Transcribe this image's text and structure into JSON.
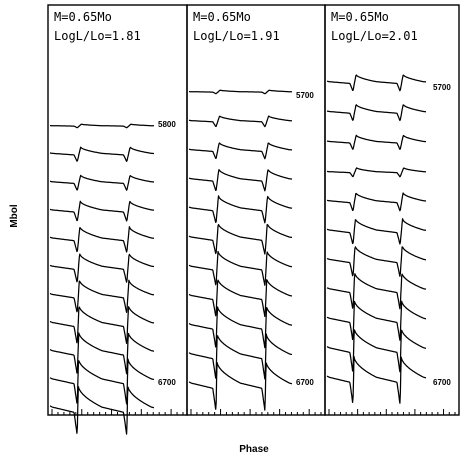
{
  "chart_data": {
    "type": "line",
    "xlabel": "Phase",
    "ylabel": "Mbol",
    "panels": [
      {
        "title_lines": [
          "M=0.65Mo",
          "LogL/Lo=1.81"
        ],
        "labels": [
          {
            "text": "5800",
            "series_index": 0
          },
          {
            "text": "6700",
            "series_index": 10
          }
        ],
        "series": [
          {
            "teff": 5800,
            "amplitude": 0.1
          },
          {
            "teff": 5890,
            "amplitude": 0.4
          },
          {
            "teff": 5980,
            "amplitude": 0.42
          },
          {
            "teff": 6070,
            "amplitude": 0.55
          },
          {
            "teff": 6160,
            "amplitude": 0.7
          },
          {
            "teff": 6250,
            "amplitude": 0.8
          },
          {
            "teff": 6340,
            "amplitude": 0.9
          },
          {
            "teff": 6430,
            "amplitude": 1.05
          },
          {
            "teff": 6520,
            "amplitude": 1.15
          },
          {
            "teff": 6610,
            "amplitude": 1.25
          },
          {
            "teff": 6700,
            "amplitude": 1.35
          }
        ]
      },
      {
        "title_lines": [
          "M=0.65Mo",
          "LogL/Lo=1.91"
        ],
        "labels": [
          {
            "text": "5700",
            "series_index": 0
          },
          {
            "text": "6700",
            "series_index": 10
          }
        ],
        "series": [
          {
            "teff": 5700,
            "amplitude": 0.1
          },
          {
            "teff": 5800,
            "amplitude": 0.3
          },
          {
            "teff": 5900,
            "amplitude": 0.45
          },
          {
            "teff": 6000,
            "amplitude": 0.6
          },
          {
            "teff": 6100,
            "amplitude": 0.75
          },
          {
            "teff": 6200,
            "amplitude": 0.85
          },
          {
            "teff": 6300,
            "amplitude": 0.95
          },
          {
            "teff": 6400,
            "amplitude": 1.05
          },
          {
            "teff": 6500,
            "amplitude": 1.15
          },
          {
            "teff": 6600,
            "amplitude": 1.25
          },
          {
            "teff": 6700,
            "amplitude": 1.35
          }
        ]
      },
      {
        "title_lines": [
          "M=0.65Mo",
          "LogL/Lo=2.01"
        ],
        "labels": [
          {
            "text": "5700",
            "series_index": 0
          },
          {
            "text": "6700",
            "series_index": 10
          }
        ],
        "series": [
          {
            "teff": 5700,
            "amplitude": 0.45
          },
          {
            "teff": 5800,
            "amplitude": 0.45
          },
          {
            "teff": 5900,
            "amplitude": 0.4
          },
          {
            "teff": 6000,
            "amplitude": 0.25
          },
          {
            "teff": 6100,
            "amplitude": 0.5
          },
          {
            "teff": 6200,
            "amplitude": 0.7
          },
          {
            "teff": 6300,
            "amplitude": 0.85
          },
          {
            "teff": 6400,
            "amplitude": 1.0
          },
          {
            "teff": 6500,
            "amplitude": 1.1
          },
          {
            "teff": 6600,
            "amplitude": 1.2
          },
          {
            "teff": 6700,
            "amplitude": 1.3
          }
        ]
      }
    ]
  }
}
